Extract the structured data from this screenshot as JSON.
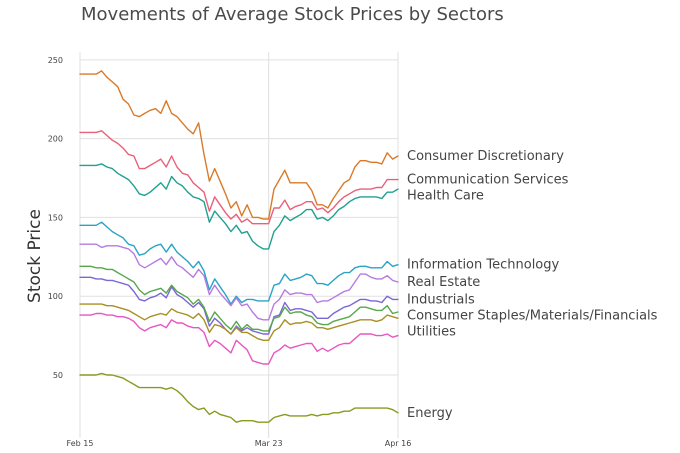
{
  "chart_data": {
    "type": "line",
    "title": "Movements of Average Stock Prices by Sectors",
    "xlabel": "",
    "ylabel": "Stock Price",
    "x_ticks": [
      "Feb 15",
      "Mar 23",
      "Apr 16"
    ],
    "y_ticks": [
      50,
      100,
      150,
      200,
      250
    ],
    "ylim": [
      10,
      255
    ],
    "grid": true,
    "legend": "right-end labels",
    "series": [
      {
        "name": "Consumer Discretionary",
        "color": "#d97a2b",
        "values": [
          241,
          241,
          241,
          241,
          243,
          239,
          236,
          233,
          225,
          222,
          215,
          214,
          216,
          218,
          219,
          216,
          224,
          216,
          214,
          210,
          206,
          203,
          210,
          190,
          173,
          181,
          173,
          165,
          156,
          160,
          151,
          158,
          150,
          150,
          149,
          149,
          168,
          174,
          180,
          172,
          172,
          172,
          172,
          167,
          158,
          158,
          156,
          162,
          167,
          172,
          174,
          182,
          186,
          186,
          185,
          185,
          184,
          191,
          187,
          189
        ]
      },
      {
        "name": "Communication Services",
        "color": "#e8607a",
        "values": [
          204,
          204,
          204,
          204,
          205,
          202,
          199,
          197,
          194,
          190,
          189,
          181,
          181,
          183,
          185,
          187,
          182,
          189,
          182,
          178,
          177,
          172,
          169,
          166,
          154,
          163,
          158,
          153,
          149,
          152,
          147,
          149,
          146,
          146,
          146,
          146,
          156,
          156,
          161,
          155,
          157,
          158,
          160,
          160,
          155,
          156,
          153,
          156,
          160,
          163,
          165,
          167,
          168,
          168,
          168,
          169,
          169,
          174,
          174,
          174
        ]
      },
      {
        "name": "Health Care",
        "color": "#20a090",
        "values": [
          183,
          183,
          183,
          183,
          184,
          182,
          181,
          178,
          176,
          174,
          170,
          165,
          164,
          166,
          169,
          172,
          168,
          176,
          172,
          170,
          166,
          163,
          162,
          160,
          147,
          154,
          150,
          146,
          141,
          145,
          140,
          141,
          135,
          132,
          130,
          130,
          141,
          145,
          151,
          148,
          150,
          152,
          155,
          155,
          149,
          150,
          148,
          151,
          155,
          157,
          160,
          162,
          163,
          163,
          163,
          163,
          162,
          166,
          166,
          168
        ]
      },
      {
        "name": "Information Technology",
        "color": "#2aa3c6",
        "values": [
          145,
          145,
          145,
          145,
          147,
          144,
          141,
          139,
          137,
          133,
          132,
          126,
          127,
          130,
          132,
          133,
          128,
          133,
          128,
          125,
          122,
          118,
          122,
          116,
          104,
          111,
          106,
          101,
          95,
          100,
          96,
          98,
          98,
          97,
          97,
          97,
          107,
          108,
          114,
          110,
          111,
          112,
          114,
          113,
          108,
          108,
          107,
          110,
          113,
          115,
          115,
          118,
          119,
          119,
          118,
          118,
          118,
          122,
          119,
          120
        ]
      },
      {
        "name": "Real Estate",
        "color": "#b77be0",
        "values": [
          133,
          133,
          133,
          133,
          131,
          132,
          132,
          132,
          131,
          130,
          127,
          120,
          118,
          120,
          122,
          124,
          120,
          125,
          120,
          118,
          115,
          112,
          117,
          113,
          101,
          107,
          102,
          98,
          94,
          99,
          94,
          95,
          90,
          86,
          85,
          85,
          95,
          98,
          104,
          101,
          102,
          102,
          101,
          101,
          96,
          97,
          97,
          99,
          101,
          103,
          104,
          109,
          114,
          114,
          112,
          111,
          111,
          113,
          110,
          109
        ]
      },
      {
        "name": "Industrials",
        "color": "#7b66d6",
        "values": [
          112,
          112,
          112,
          111,
          111,
          110,
          110,
          109,
          108,
          107,
          103,
          98,
          97,
          99,
          100,
          102,
          99,
          106,
          101,
          99,
          96,
          93,
          96,
          92,
          81,
          86,
          83,
          79,
          76,
          81,
          78,
          80,
          78,
          77,
          76,
          76,
          87,
          88,
          96,
          91,
          92,
          92,
          91,
          90,
          86,
          86,
          86,
          89,
          91,
          93,
          94,
          96,
          98,
          98,
          97,
          97,
          96,
          100,
          98,
          98
        ]
      },
      {
        "name": "Consumer Staples/Materials/Financials",
        "color": "#56a84a",
        "values": [
          119,
          119,
          119,
          118,
          118,
          117,
          117,
          115,
          113,
          111,
          109,
          104,
          101,
          103,
          104,
          105,
          102,
          107,
          103,
          101,
          99,
          95,
          98,
          93,
          84,
          90,
          86,
          82,
          79,
          84,
          79,
          82,
          79,
          79,
          78,
          78,
          86,
          87,
          93,
          89,
          90,
          90,
          88,
          87,
          83,
          82,
          82,
          84,
          85,
          86,
          87,
          90,
          93,
          93,
          92,
          91,
          91,
          94,
          89,
          90
        ]
      },
      {
        "name": "Utilities",
        "color": "#a89024",
        "values": [
          95,
          95,
          95,
          95,
          95,
          94,
          94,
          93,
          92,
          91,
          89,
          87,
          85,
          87,
          88,
          89,
          88,
          92,
          90,
          89,
          88,
          86,
          89,
          85,
          77,
          82,
          81,
          79,
          76,
          80,
          77,
          77,
          75,
          73,
          72,
          72,
          78,
          80,
          85,
          82,
          83,
          83,
          84,
          83,
          80,
          80,
          79,
          80,
          81,
          82,
          83,
          84,
          85,
          85,
          85,
          84,
          85,
          88,
          87,
          86
        ]
      },
      {
        "name": "",
        "color": "#e856c0",
        "values": [
          88,
          88,
          88,
          89,
          89,
          88,
          88,
          87,
          87,
          86,
          84,
          80,
          78,
          80,
          81,
          82,
          80,
          85,
          83,
          83,
          81,
          80,
          80,
          77,
          68,
          72,
          70,
          67,
          64,
          72,
          69,
          66,
          59,
          58,
          57,
          57,
          64,
          66,
          69,
          67,
          68,
          69,
          70,
          70,
          65,
          67,
          65,
          67,
          69,
          70,
          70,
          73,
          76,
          76,
          76,
          75,
          75,
          76,
          74,
          75
        ]
      },
      {
        "name": "Energy",
        "color": "#8a9a20",
        "values": [
          50,
          50,
          50,
          50,
          51,
          50,
          50,
          49,
          48,
          46,
          44,
          42,
          42,
          42,
          42,
          42,
          41,
          42,
          40,
          37,
          33,
          30,
          28,
          29,
          25,
          27,
          25,
          24,
          23,
          20,
          21,
          21,
          21,
          20,
          20,
          20,
          23,
          24,
          25,
          24,
          24,
          24,
          24,
          25,
          24,
          25,
          25,
          26,
          26,
          27,
          27,
          29,
          29,
          29,
          29,
          29,
          29,
          29,
          28,
          26
        ]
      }
    ]
  }
}
